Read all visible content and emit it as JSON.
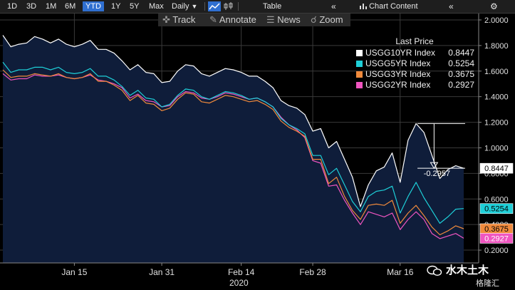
{
  "toolbar": {
    "ranges": [
      "1D",
      "3D",
      "1M",
      "6M",
      "YTD",
      "1Y",
      "5Y",
      "Max"
    ],
    "active_range": "YTD",
    "frequency": "Daily",
    "table_label": "Table",
    "chart_content_label": "Chart Content"
  },
  "subbar": {
    "track_label": "Track",
    "annotate_label": "Annotate",
    "news_label": "News",
    "zoom_label": "Zoom"
  },
  "legend": {
    "title": "Last Price",
    "items": [
      {
        "name": "USGG10YR Index",
        "value": "0.8447",
        "color": "#ffffff"
      },
      {
        "name": "USGG5YR Index",
        "value": "0.5254",
        "color": "#1ecfd8"
      },
      {
        "name": "USGG3YR Index",
        "value": "0.3675",
        "color": "#f08a3c"
      },
      {
        "name": "USGG2YR Index",
        "value": "0.2927",
        "color": "#f055c0"
      }
    ]
  },
  "annotation": {
    "delta_label": "-0.2957"
  },
  "watermark": {
    "main": "水木土木",
    "sub": "格隆汇"
  },
  "colors": {
    "fill": "#0f1d3a",
    "grid": "#3a3a3a",
    "bg": "#000000",
    "accent": "#2f6fd0"
  },
  "chart_data": {
    "type": "line",
    "x": [
      "2020-01-02",
      "2020-01-03",
      "2020-01-06",
      "2020-01-07",
      "2020-01-08",
      "2020-01-09",
      "2020-01-10",
      "2020-01-13",
      "2020-01-14",
      "2020-01-15",
      "2020-01-16",
      "2020-01-17",
      "2020-01-21",
      "2020-01-22",
      "2020-01-23",
      "2020-01-24",
      "2020-01-27",
      "2020-01-28",
      "2020-01-29",
      "2020-01-30",
      "2020-01-31",
      "2020-02-03",
      "2020-02-04",
      "2020-02-05",
      "2020-02-06",
      "2020-02-07",
      "2020-02-10",
      "2020-02-11",
      "2020-02-12",
      "2020-02-13",
      "2020-02-14",
      "2020-02-18",
      "2020-02-19",
      "2020-02-20",
      "2020-02-21",
      "2020-02-24",
      "2020-02-25",
      "2020-02-26",
      "2020-02-27",
      "2020-02-28",
      "2020-03-02",
      "2020-03-03",
      "2020-03-04",
      "2020-03-05",
      "2020-03-06",
      "2020-03-09",
      "2020-03-10",
      "2020-03-11",
      "2020-03-12",
      "2020-03-13",
      "2020-03-16",
      "2020-03-17",
      "2020-03-18",
      "2020-03-19",
      "2020-03-20",
      "2020-03-23",
      "2020-03-24",
      "2020-03-25",
      "2020-03-26"
    ],
    "x_ticks": [
      "Jan 15",
      "Jan 31",
      "Feb 14",
      "Feb 28",
      "Mar 16"
    ],
    "x_tick_dates": [
      "2020-01-15",
      "2020-01-31",
      "2020-02-14",
      "2020-02-28",
      "2020-03-16"
    ],
    "x_year_label": "2020",
    "ylim": [
      0.1,
      2.05
    ],
    "y_ticks": [
      2.0,
      1.8,
      1.6,
      1.4,
      1.2,
      1.0,
      0.8,
      0.6,
      0.4,
      0.2
    ],
    "y_tick_labels": [
      "2.0000",
      "1.8000",
      "1.6000",
      "1.4000",
      "1.2000",
      "1.0000",
      "0.8000",
      "0.6000",
      "0.4000",
      "0.2000"
    ],
    "series": [
      {
        "name": "USGG10YR Index",
        "color": "#ffffff",
        "values": [
          1.88,
          1.79,
          1.81,
          1.82,
          1.87,
          1.85,
          1.82,
          1.85,
          1.81,
          1.79,
          1.81,
          1.84,
          1.77,
          1.77,
          1.74,
          1.68,
          1.61,
          1.65,
          1.59,
          1.58,
          1.51,
          1.52,
          1.6,
          1.65,
          1.64,
          1.58,
          1.56,
          1.59,
          1.62,
          1.61,
          1.59,
          1.56,
          1.56,
          1.52,
          1.47,
          1.37,
          1.33,
          1.31,
          1.26,
          1.13,
          1.15,
          1.0,
          1.05,
          0.91,
          0.77,
          0.54,
          0.71,
          0.82,
          0.85,
          0.96,
          0.73,
          1.06,
          1.19,
          1.12,
          0.94,
          0.76,
          0.83,
          0.86,
          0.84
        ]
      },
      {
        "name": "USGG5YR Index",
        "color": "#1ecfd8",
        "values": [
          1.67,
          1.59,
          1.61,
          1.61,
          1.63,
          1.63,
          1.61,
          1.63,
          1.59,
          1.58,
          1.59,
          1.62,
          1.56,
          1.56,
          1.53,
          1.48,
          1.41,
          1.45,
          1.39,
          1.38,
          1.32,
          1.34,
          1.41,
          1.46,
          1.45,
          1.4,
          1.38,
          1.41,
          1.44,
          1.43,
          1.41,
          1.38,
          1.39,
          1.36,
          1.32,
          1.23,
          1.18,
          1.15,
          1.11,
          0.94,
          0.94,
          0.79,
          0.84,
          0.71,
          0.58,
          0.5,
          0.62,
          0.66,
          0.67,
          0.7,
          0.49,
          0.62,
          0.73,
          0.61,
          0.51,
          0.41,
          0.46,
          0.52,
          0.525
        ]
      },
      {
        "name": "USGG3YR Index",
        "color": "#f08a3c",
        "values": [
          1.61,
          1.55,
          1.56,
          1.56,
          1.58,
          1.57,
          1.56,
          1.58,
          1.55,
          1.54,
          1.55,
          1.58,
          1.52,
          1.52,
          1.49,
          1.45,
          1.37,
          1.41,
          1.35,
          1.34,
          1.29,
          1.31,
          1.38,
          1.43,
          1.42,
          1.36,
          1.35,
          1.38,
          1.41,
          1.4,
          1.38,
          1.36,
          1.37,
          1.34,
          1.3,
          1.21,
          1.16,
          1.13,
          1.09,
          0.91,
          0.91,
          0.72,
          0.77,
          0.62,
          0.51,
          0.44,
          0.55,
          0.56,
          0.55,
          0.59,
          0.41,
          0.49,
          0.55,
          0.47,
          0.38,
          0.32,
          0.35,
          0.39,
          0.3675
        ]
      },
      {
        "name": "USGG2YR Index",
        "color": "#f055c0",
        "values": [
          1.58,
          1.53,
          1.54,
          1.54,
          1.57,
          1.56,
          1.56,
          1.57,
          1.55,
          1.54,
          1.55,
          1.57,
          1.53,
          1.52,
          1.5,
          1.47,
          1.39,
          1.42,
          1.37,
          1.36,
          1.32,
          1.33,
          1.4,
          1.44,
          1.43,
          1.39,
          1.38,
          1.4,
          1.43,
          1.42,
          1.4,
          1.38,
          1.39,
          1.36,
          1.32,
          1.24,
          1.18,
          1.14,
          1.08,
          0.9,
          0.88,
          0.7,
          0.71,
          0.59,
          0.49,
          0.4,
          0.5,
          0.48,
          0.46,
          0.49,
          0.36,
          0.44,
          0.5,
          0.44,
          0.33,
          0.29,
          0.31,
          0.33,
          0.2927
        ]
      }
    ]
  }
}
